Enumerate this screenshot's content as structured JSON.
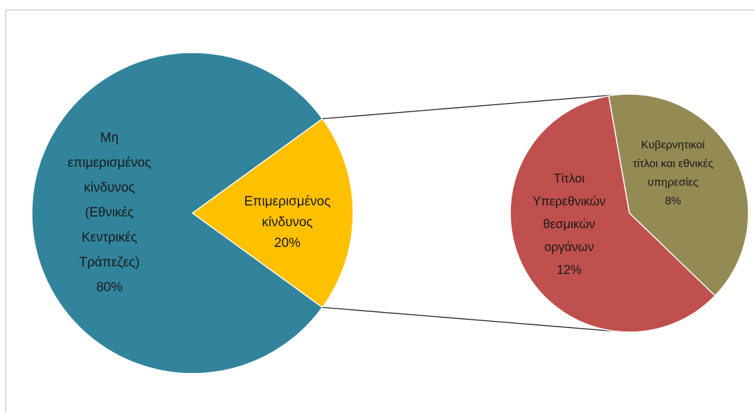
{
  "chart_data": {
    "type": "pie",
    "subtype": "pie-of-pie",
    "main_pie": {
      "slices": [
        {
          "label_lines": [
            "Μη",
            "επιμερισμένος",
            "κίνδυνος",
            "(Εθνικές",
            "Κεντρικές",
            "Τράπεζες)"
          ],
          "value": 80,
          "value_label": "80%",
          "color": "#31849b"
        },
        {
          "label_lines": [
            "Επιμερισμένος",
            "κίνδυνος"
          ],
          "value": 20,
          "value_label": "20%",
          "color": "#ffc000"
        }
      ]
    },
    "secondary_pie": {
      "slices": [
        {
          "label_lines": [
            "Τίτλοι",
            "Υπερεθνικών",
            "θεσμικών",
            "οργάνων"
          ],
          "value": 12,
          "value_label": "12%",
          "color": "#c0504d"
        },
        {
          "label_lines": [
            "Κυβερνητικοί",
            "τίτλοι και εθνικές",
            "υπηρεσίες"
          ],
          "value": 8,
          "value_label": "8%",
          "color": "#948a54"
        }
      ]
    },
    "legend": "none"
  }
}
